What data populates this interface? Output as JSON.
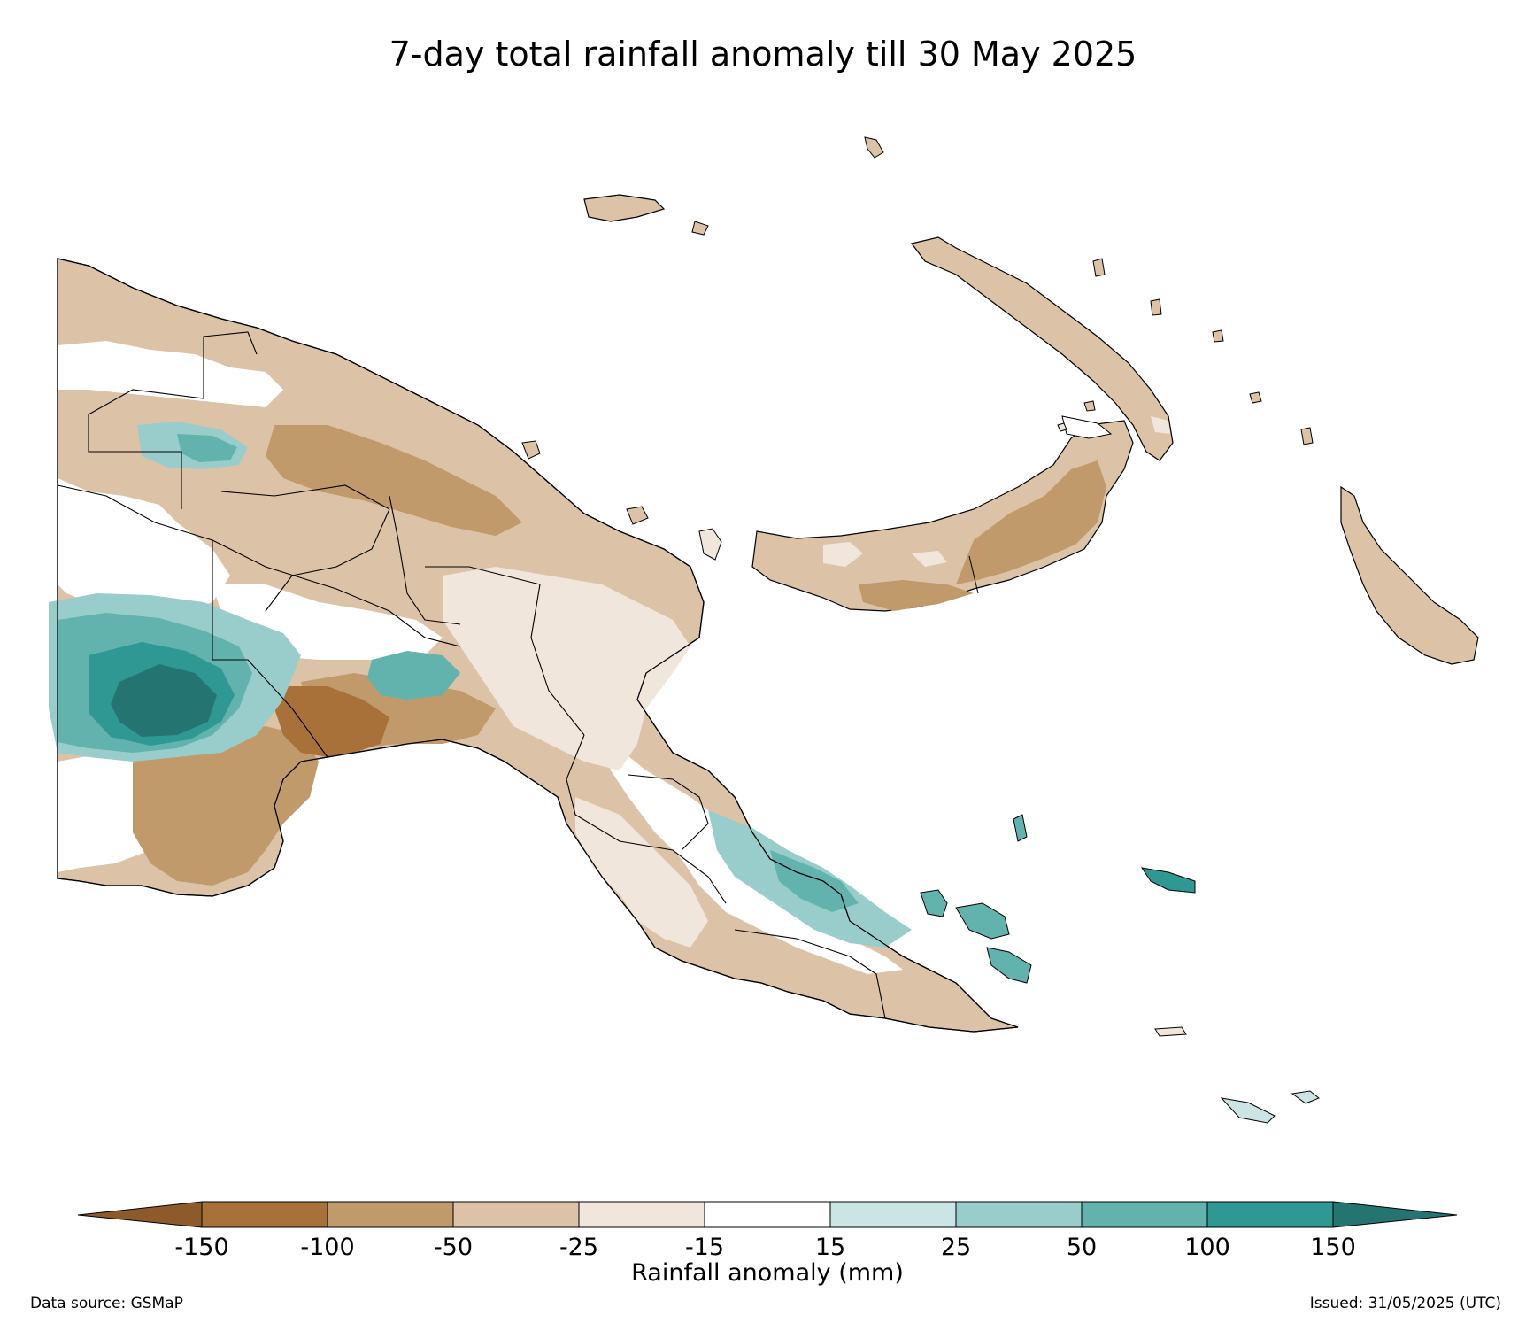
{
  "title": "7-day total rainfall anomaly till 30 May 2025",
  "colorbar": {
    "label": "Rainfall anomaly (mm)",
    "ticks": [
      "-150",
      "-100",
      "-50",
      "-25",
      "-15",
      "15",
      "25",
      "50",
      "100",
      "150"
    ],
    "colors": [
      "#8f5a2a",
      "#a9713a",
      "#c19a6c",
      "#dcc3a8",
      "#f1e6dc",
      "#ffffff",
      "#cbe5e4",
      "#98cdcb",
      "#62b2ae",
      "#2f9893",
      "#247572"
    ]
  },
  "footer": {
    "source": "Data source: GSMaP",
    "issued": "Issued: 31/05/2025 (UTC)"
  }
}
